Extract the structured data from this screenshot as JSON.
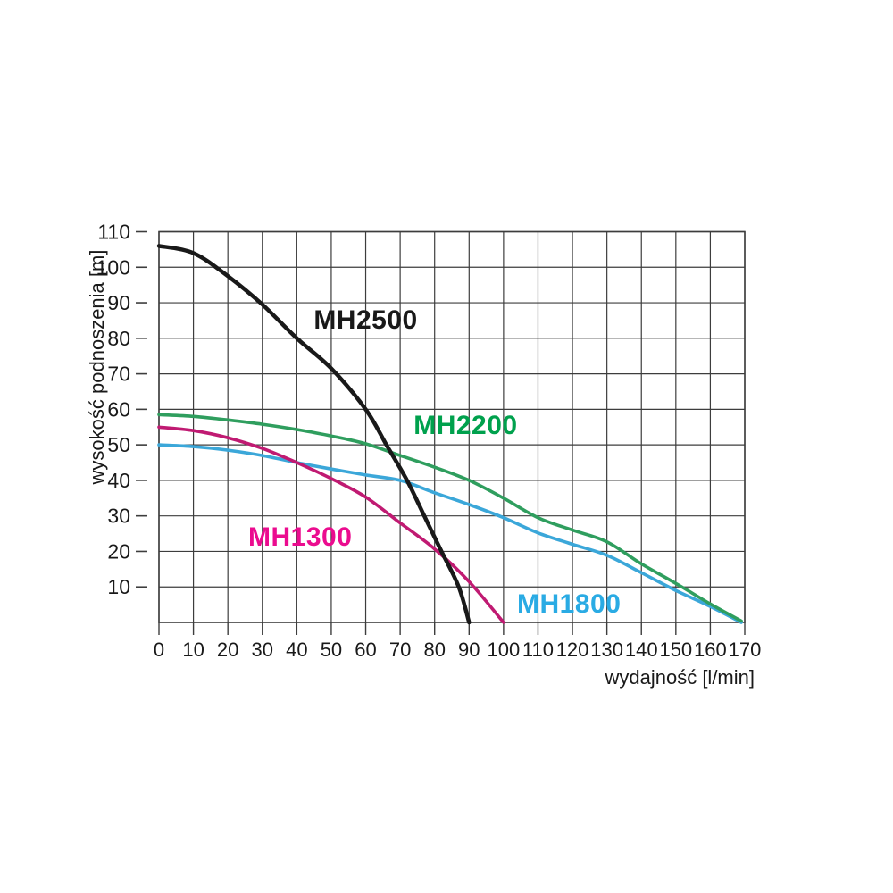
{
  "page": {
    "background": "#ffffff",
    "description": "Pump performance curves: head vs flow for MH series pumps"
  },
  "colors": {
    "grid": "#3d3d3d",
    "frame": "#3d3d3d",
    "tick_text": "#191919"
  },
  "chart_data": {
    "type": "line",
    "title": "",
    "xlabel": "wydajność [l/min]",
    "ylabel": "wysokość podnoszenia [m]",
    "xlim": [
      0,
      170
    ],
    "ylim": [
      0,
      110
    ],
    "x_ticks": [
      0,
      10,
      20,
      30,
      40,
      50,
      60,
      70,
      80,
      90,
      100,
      110,
      120,
      130,
      140,
      150,
      160,
      170
    ],
    "y_ticks": [
      10,
      20,
      30,
      40,
      50,
      60,
      70,
      80,
      90,
      100,
      110
    ],
    "grid": true,
    "legend_position": "labels-on-curves",
    "series": [
      {
        "name": "MH2500",
        "color": "#191919",
        "label_color": "#191919",
        "line_width": 4.5,
        "label_pos": {
          "x": 60,
          "y": 85
        },
        "points": [
          [
            0,
            106
          ],
          [
            10,
            104
          ],
          [
            20,
            97.5
          ],
          [
            30,
            89.5
          ],
          [
            40,
            80
          ],
          [
            50,
            71.5
          ],
          [
            60,
            60
          ],
          [
            66,
            50
          ],
          [
            72,
            40
          ],
          [
            77,
            30
          ],
          [
            82,
            20
          ],
          [
            87,
            10
          ],
          [
            90,
            0
          ]
        ]
      },
      {
        "name": "MH2200",
        "color": "#2f9e5e",
        "label_color": "#00a14d",
        "line_width": 3.6,
        "label_pos": {
          "x": 89,
          "y": 55.4
        },
        "points": [
          [
            0,
            58.5
          ],
          [
            10,
            58
          ],
          [
            20,
            57
          ],
          [
            30,
            55.8
          ],
          [
            40,
            54.3
          ],
          [
            50,
            52.5
          ],
          [
            60,
            50.3
          ],
          [
            70,
            47
          ],
          [
            80,
            43.7
          ],
          [
            90,
            40
          ],
          [
            100,
            35
          ],
          [
            110,
            29.5
          ],
          [
            120,
            26
          ],
          [
            130,
            22.7
          ],
          [
            140,
            16.5
          ],
          [
            150,
            11
          ],
          [
            160,
            5.2
          ],
          [
            169,
            0.4
          ]
        ]
      },
      {
        "name": "MH1300",
        "color": "#c01a72",
        "label_color": "#eb0c8f",
        "line_width": 3.6,
        "label_pos": {
          "x": 41,
          "y": 24
        },
        "points": [
          [
            0,
            55
          ],
          [
            10,
            54
          ],
          [
            20,
            52
          ],
          [
            30,
            49
          ],
          [
            40,
            45
          ],
          [
            50,
            40.5
          ],
          [
            60,
            35.3
          ],
          [
            70,
            28
          ],
          [
            80,
            20.7
          ],
          [
            90,
            11.5
          ],
          [
            100,
            0
          ]
        ]
      },
      {
        "name": "MH1800",
        "color": "#3ba7d9",
        "label_color": "#2aabe4",
        "line_width": 3.6,
        "label_pos": {
          "x": 119,
          "y": 5
        },
        "points": [
          [
            0,
            50
          ],
          [
            10,
            49.5
          ],
          [
            20,
            48.5
          ],
          [
            30,
            47
          ],
          [
            40,
            45
          ],
          [
            50,
            43.2
          ],
          [
            60,
            41.5
          ],
          [
            70,
            40
          ],
          [
            80,
            36.5
          ],
          [
            90,
            33.2
          ],
          [
            100,
            29.5
          ],
          [
            110,
            25.2
          ],
          [
            120,
            22
          ],
          [
            130,
            18.9
          ],
          [
            140,
            14
          ],
          [
            150,
            9
          ],
          [
            160,
            4.5
          ],
          [
            169,
            0
          ]
        ]
      }
    ]
  }
}
